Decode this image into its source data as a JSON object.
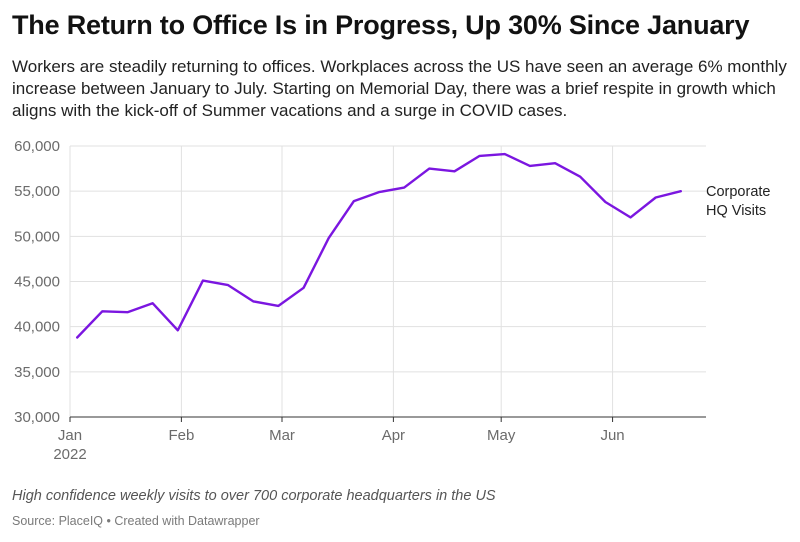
{
  "header": {
    "title": "The Return to Office Is in Progress, Up 30% Since January",
    "subtitle": "Workers are steadily returning to offices. Workplaces across the US have seen an average 6% monthly increase between January to July. Starting on Memorial Day, there was a brief respite in growth which aligns with the kick-off of Summer vacations and a surge in COVID cases."
  },
  "footer": {
    "notes": "High confidence weekly visits to over 700 corporate headquarters in the US",
    "source_prefix": "Source: ",
    "source_name": "PlaceIQ",
    "separator": " • ",
    "credit": "Created with Datawrapper"
  },
  "colors": {
    "line": "#7b16e0",
    "grid": "#e1e1e1",
    "axis": "#333333"
  },
  "chart_data": {
    "type": "line",
    "title": "The Return to Office Is in Progress, Up 30% Since January",
    "xlabel": "",
    "ylabel": "",
    "ylim": [
      30000,
      60000
    ],
    "y_ticks": [
      30000,
      35000,
      40000,
      45000,
      50000,
      55000,
      60000
    ],
    "y_tick_labels": [
      "30,000",
      "35,000",
      "40,000",
      "45,000",
      "50,000",
      "55,000",
      "60,000"
    ],
    "x_ticks": [
      {
        "date": "2022-01-01",
        "label": "Jan",
        "sublabel": "2022"
      },
      {
        "date": "2022-02-01",
        "label": "Feb"
      },
      {
        "date": "2022-03-01",
        "label": "Mar"
      },
      {
        "date": "2022-04-01",
        "label": "Apr"
      },
      {
        "date": "2022-05-01",
        "label": "May"
      },
      {
        "date": "2022-06-01",
        "label": "Jun"
      }
    ],
    "xlim": [
      "2022-01-01",
      "2022-06-27"
    ],
    "grid": true,
    "series": [
      {
        "name": "Corporate HQ Visits",
        "label_lines": [
          "Corporate",
          "HQ Visits"
        ],
        "x": [
          "2022-01-03",
          "2022-01-10",
          "2022-01-17",
          "2022-01-24",
          "2022-01-31",
          "2022-02-07",
          "2022-02-14",
          "2022-02-21",
          "2022-02-28",
          "2022-03-07",
          "2022-03-14",
          "2022-03-21",
          "2022-03-28",
          "2022-04-04",
          "2022-04-11",
          "2022-04-18",
          "2022-04-25",
          "2022-05-02",
          "2022-05-09",
          "2022-05-16",
          "2022-05-23",
          "2022-05-30",
          "2022-06-06",
          "2022-06-13",
          "2022-06-20"
        ],
        "values": [
          38800,
          41700,
          41600,
          42600,
          39600,
          45100,
          44600,
          42800,
          42300,
          44300,
          49800,
          53900,
          54900,
          55400,
          57500,
          57200,
          58900,
          59100,
          57800,
          58100,
          56600,
          53800,
          52100,
          54300,
          55000
        ]
      }
    ]
  }
}
